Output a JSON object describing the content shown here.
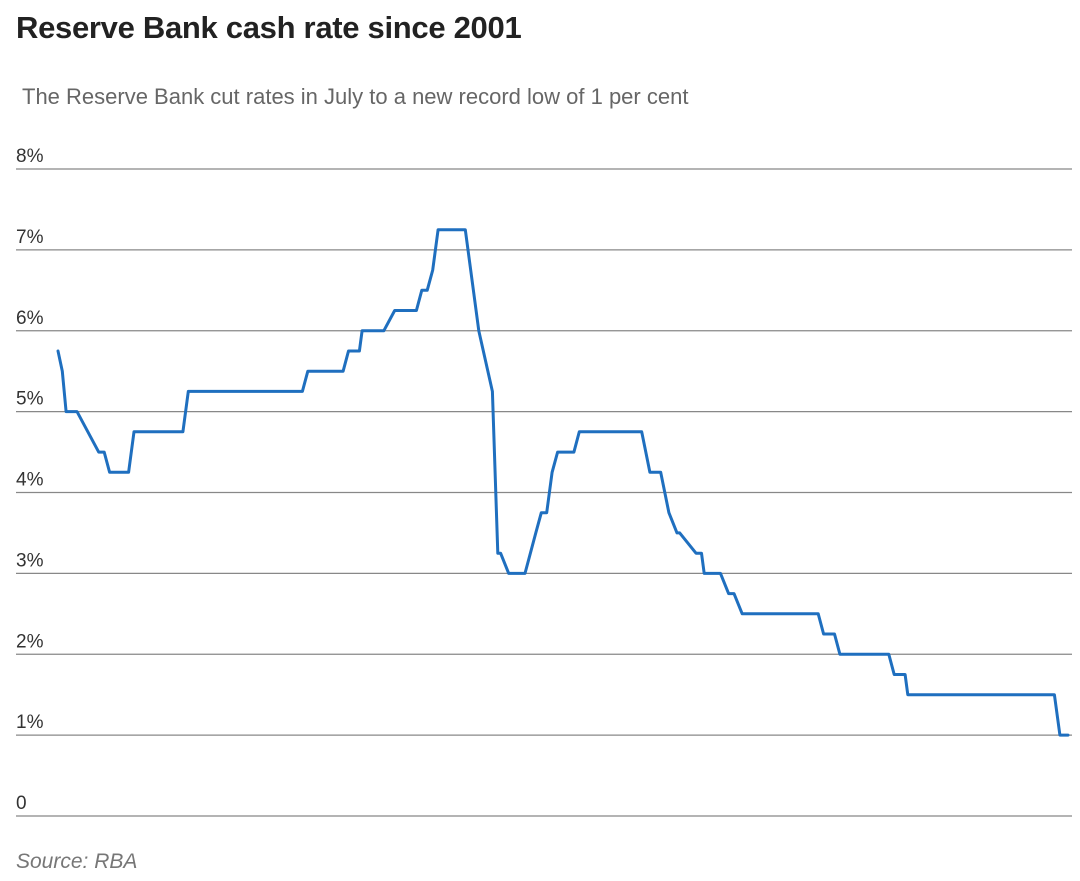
{
  "title": "Reserve Bank cash rate since 2001",
  "subtitle": "The Reserve Bank cut rates in July to a new record low of 1 per cent",
  "source": "Source: RBA",
  "colors": {
    "line": "#1f6fbf",
    "grid": "#888888",
    "title": "#222222"
  },
  "chart_data": {
    "type": "line",
    "title": "Reserve Bank cash rate since 2001",
    "xlabel": "",
    "ylabel": "",
    "ylim": [
      0,
      8
    ],
    "xlim": [
      2001.0,
      2019.6
    ],
    "yticks": [
      {
        "value": 0,
        "label": "0"
      },
      {
        "value": 1,
        "label": "1%"
      },
      {
        "value": 2,
        "label": "2%"
      },
      {
        "value": 3,
        "label": "3%"
      },
      {
        "value": 4,
        "label": "4%"
      },
      {
        "value": 5,
        "label": "5%"
      },
      {
        "value": 6,
        "label": "6%"
      },
      {
        "value": 7,
        "label": "7%"
      },
      {
        "value": 8,
        "label": "8%"
      }
    ],
    "grid": true,
    "legend": "none",
    "series": [
      {
        "x": [
          2001.0,
          2001.08,
          2001.15,
          2001.25,
          2001.35,
          2001.75,
          2001.85,
          2001.95,
          2002.05,
          2002.3,
          2002.4,
          2002.55,
          2002.65,
          2002.75,
          2003.0,
          2003.1,
          2003.3,
          2003.4,
          2003.5,
          2004.5,
          2005.5,
          2005.6,
          2005.7,
          2005.8,
          2006.0,
          2006.25,
          2006.35,
          2006.55,
          2006.6,
          2007.0,
          2007.2,
          2007.4,
          2007.6,
          2007.7,
          2007.8,
          2007.9,
          2008.0,
          2008.5,
          2008.75,
          2009.0,
          2009.1,
          2009.15,
          2009.3,
          2009.5,
          2009.6,
          2009.8,
          2009.9,
          2010.0,
          2010.1,
          2010.2,
          2010.5,
          2010.6,
          2010.85,
          2011.5,
          2011.75,
          2011.9,
          2012.1,
          2012.25,
          2012.4,
          2012.45,
          2012.75,
          2012.85,
          2012.9,
          2013.2,
          2013.35,
          2013.45,
          2013.6,
          2013.8,
          2014.0,
          2015.0,
          2015.1,
          2015.3,
          2015.4,
          2016.3,
          2016.4,
          2016.6,
          2016.65,
          2019.35,
          2019.45,
          2019.6
        ],
        "values": [
          5.75,
          5.5,
          5.0,
          5.0,
          5.0,
          4.5,
          4.5,
          4.25,
          4.25,
          4.25,
          4.75,
          4.75,
          4.75,
          4.75,
          4.75,
          4.75,
          4.75,
          5.25,
          5.25,
          5.25,
          5.25,
          5.5,
          5.5,
          5.5,
          5.5,
          5.5,
          5.75,
          5.75,
          6.0,
          6.0,
          6.25,
          6.25,
          6.25,
          6.5,
          6.5,
          6.75,
          7.25,
          7.25,
          6.0,
          5.25,
          3.25,
          3.25,
          3.0,
          3.0,
          3.0,
          3.5,
          3.75,
          3.75,
          4.25,
          4.5,
          4.5,
          4.75,
          4.75,
          4.75,
          4.75,
          4.25,
          4.25,
          3.75,
          3.5,
          3.5,
          3.25,
          3.25,
          3.0,
          3.0,
          2.75,
          2.75,
          2.5,
          2.5,
          2.5,
          2.5,
          2.25,
          2.25,
          2.0,
          2.0,
          1.75,
          1.75,
          1.5,
          1.5,
          1.0,
          1.0
        ]
      }
    ]
  }
}
